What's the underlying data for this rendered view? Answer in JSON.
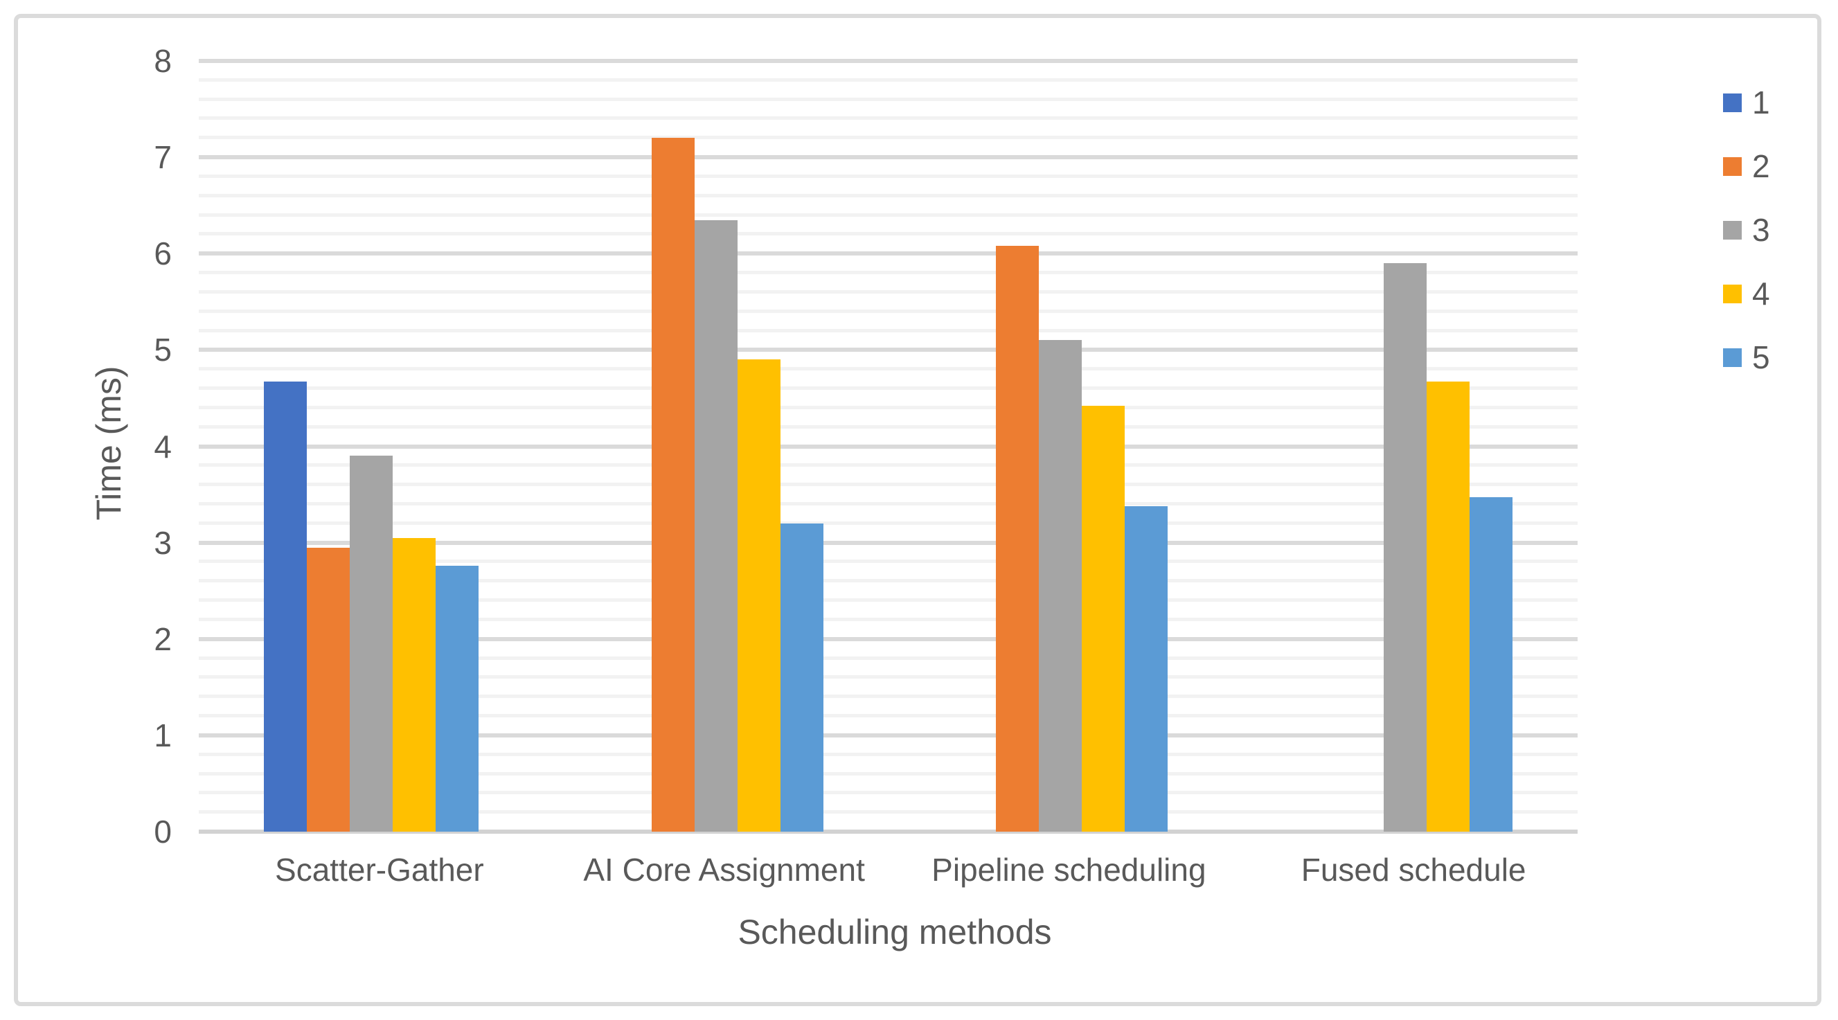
{
  "chart_data": {
    "type": "bar",
    "title": "",
    "xlabel": "Scheduling methods",
    "ylabel": "Time (ms)",
    "categories": [
      "Scatter-Gather",
      "AI Core Assignment",
      "Pipeline scheduling",
      "Fused schedule"
    ],
    "series": [
      {
        "name": "1",
        "color": "#4472C4",
        "values": [
          4.67,
          0,
          0,
          0
        ]
      },
      {
        "name": "2",
        "color": "#ED7D31",
        "values": [
          2.95,
          7.2,
          6.08,
          0
        ]
      },
      {
        "name": "3",
        "color": "#A5A5A5",
        "values": [
          3.9,
          6.35,
          5.1,
          5.9
        ]
      },
      {
        "name": "4",
        "color": "#FFC000",
        "values": [
          3.05,
          4.9,
          4.42,
          4.67
        ]
      },
      {
        "name": "5",
        "color": "#5B9BD5",
        "values": [
          2.76,
          3.2,
          3.38,
          3.47
        ]
      }
    ],
    "ylim": [
      0,
      8
    ],
    "y_major_step": 1,
    "y_minor_step": 0.2,
    "y_ticks": [
      "0",
      "1",
      "2",
      "3",
      "4",
      "5",
      "6",
      "7",
      "8"
    ],
    "grid": "horizontal major+minor, on",
    "legend_position": "right",
    "legend_items": [
      "1",
      "2",
      "3",
      "4",
      "5"
    ]
  },
  "colors": {
    "grid_major": "#DADADA",
    "grid_minor": "#F2F2F2",
    "axis_line": "#D2D2D2",
    "text": "#595959",
    "chart_border": "#DBDBDB",
    "background": "#FFFFFF"
  }
}
